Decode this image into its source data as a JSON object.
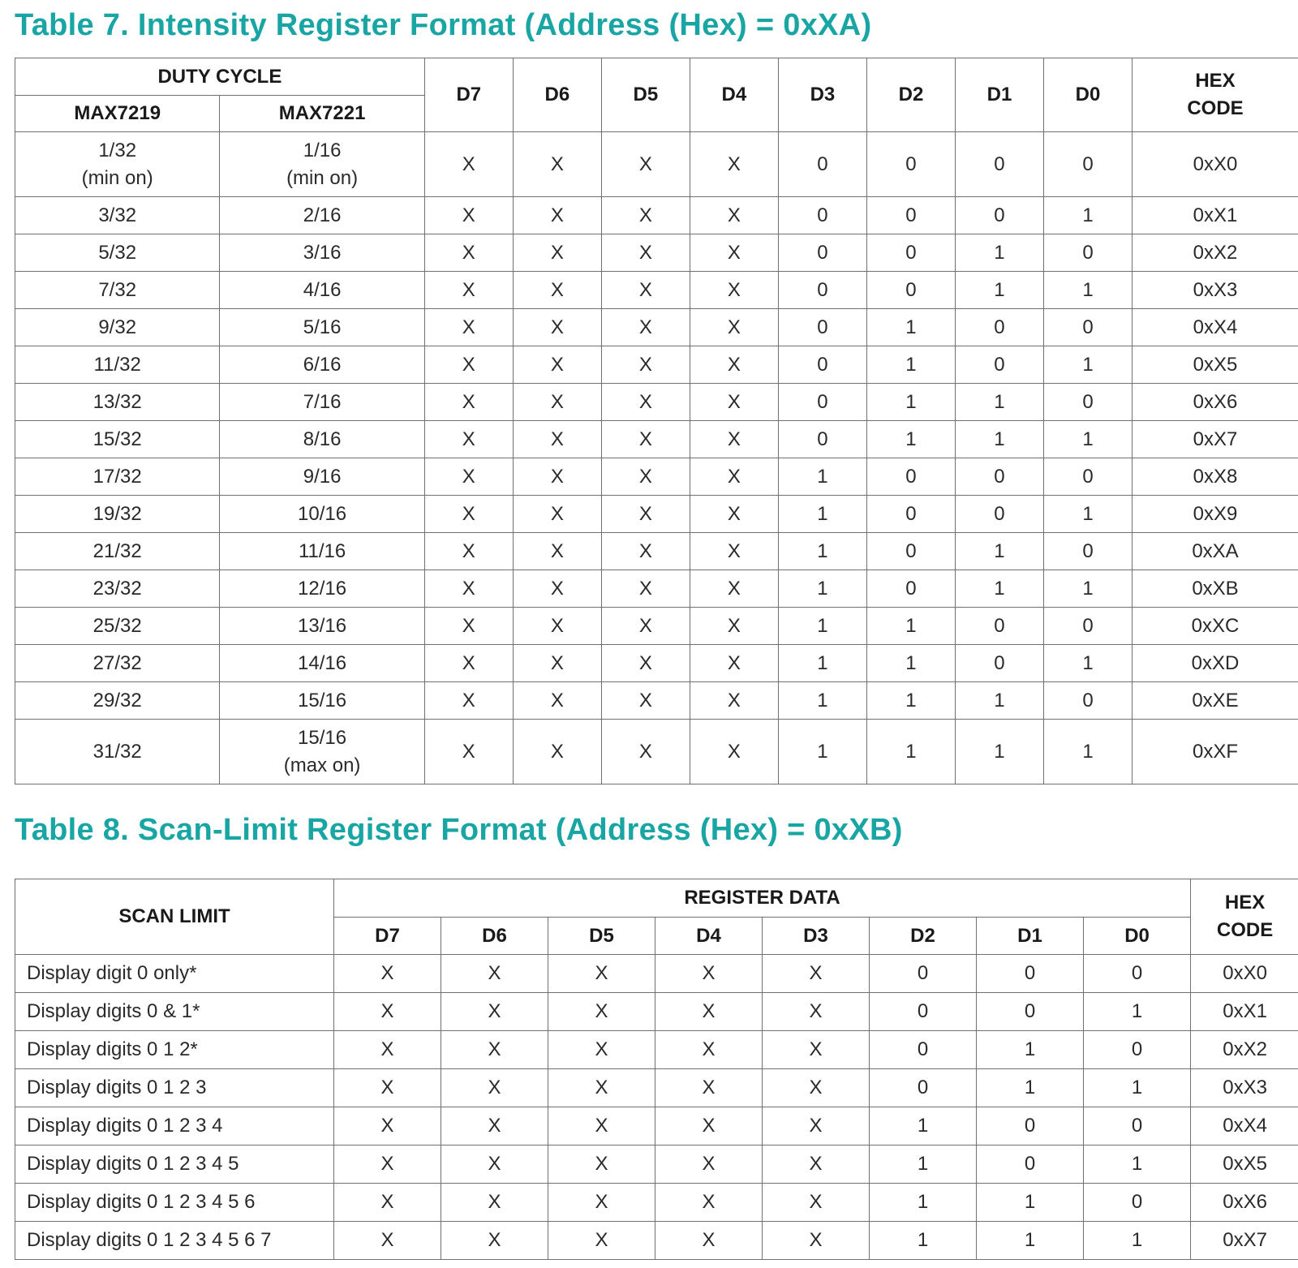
{
  "table7": {
    "title": "Table 7. Intensity Register Format (Address (Hex) = 0xXA)",
    "headers": {
      "duty_cycle": "DUTY CYCLE",
      "max7219": "MAX7219",
      "max7221": "MAX7221",
      "bits": [
        "D7",
        "D6",
        "D5",
        "D4",
        "D3",
        "D2",
        "D1",
        "D0"
      ],
      "hex_line1": "HEX",
      "hex_line2": "CODE"
    },
    "rows": [
      {
        "max7219": "1/32",
        "max7219_note": "(min on)",
        "max7221": "1/16",
        "max7221_note": "(min on)",
        "bits": [
          "X",
          "X",
          "X",
          "X",
          "0",
          "0",
          "0",
          "0"
        ],
        "hex": "0xX0"
      },
      {
        "max7219": "3/32",
        "max7221": "2/16",
        "bits": [
          "X",
          "X",
          "X",
          "X",
          "0",
          "0",
          "0",
          "1"
        ],
        "hex": "0xX1"
      },
      {
        "max7219": "5/32",
        "max7221": "3/16",
        "bits": [
          "X",
          "X",
          "X",
          "X",
          "0",
          "0",
          "1",
          "0"
        ],
        "hex": "0xX2"
      },
      {
        "max7219": "7/32",
        "max7221": "4/16",
        "bits": [
          "X",
          "X",
          "X",
          "X",
          "0",
          "0",
          "1",
          "1"
        ],
        "hex": "0xX3"
      },
      {
        "max7219": "9/32",
        "max7221": "5/16",
        "bits": [
          "X",
          "X",
          "X",
          "X",
          "0",
          "1",
          "0",
          "0"
        ],
        "hex": "0xX4"
      },
      {
        "max7219": "11/32",
        "max7221": "6/16",
        "bits": [
          "X",
          "X",
          "X",
          "X",
          "0",
          "1",
          "0",
          "1"
        ],
        "hex": "0xX5"
      },
      {
        "max7219": "13/32",
        "max7221": "7/16",
        "bits": [
          "X",
          "X",
          "X",
          "X",
          "0",
          "1",
          "1",
          "0"
        ],
        "hex": "0xX6"
      },
      {
        "max7219": "15/32",
        "max7221": "8/16",
        "bits": [
          "X",
          "X",
          "X",
          "X",
          "0",
          "1",
          "1",
          "1"
        ],
        "hex": "0xX7"
      },
      {
        "max7219": "17/32",
        "max7221": "9/16",
        "bits": [
          "X",
          "X",
          "X",
          "X",
          "1",
          "0",
          "0",
          "0"
        ],
        "hex": "0xX8"
      },
      {
        "max7219": "19/32",
        "max7221": "10/16",
        "bits": [
          "X",
          "X",
          "X",
          "X",
          "1",
          "0",
          "0",
          "1"
        ],
        "hex": "0xX9"
      },
      {
        "max7219": "21/32",
        "max7221": "11/16",
        "bits": [
          "X",
          "X",
          "X",
          "X",
          "1",
          "0",
          "1",
          "0"
        ],
        "hex": "0xXA"
      },
      {
        "max7219": "23/32",
        "max7221": "12/16",
        "bits": [
          "X",
          "X",
          "X",
          "X",
          "1",
          "0",
          "1",
          "1"
        ],
        "hex": "0xXB"
      },
      {
        "max7219": "25/32",
        "max7221": "13/16",
        "bits": [
          "X",
          "X",
          "X",
          "X",
          "1",
          "1",
          "0",
          "0"
        ],
        "hex": "0xXC"
      },
      {
        "max7219": "27/32",
        "max7221": "14/16",
        "bits": [
          "X",
          "X",
          "X",
          "X",
          "1",
          "1",
          "0",
          "1"
        ],
        "hex": "0xXD"
      },
      {
        "max7219": "29/32",
        "max7221": "15/16",
        "bits": [
          "X",
          "X",
          "X",
          "X",
          "1",
          "1",
          "1",
          "0"
        ],
        "hex": "0xXE"
      },
      {
        "max7219": "31/32",
        "max7221": "15/16",
        "max7221_note": "(max on)",
        "bits": [
          "X",
          "X",
          "X",
          "X",
          "1",
          "1",
          "1",
          "1"
        ],
        "hex": "0xXF"
      }
    ]
  },
  "table8": {
    "title": "Table 8. Scan-Limit Register Format (Address (Hex) = 0xXB)",
    "headers": {
      "scan_limit": "SCAN LIMIT",
      "register_data": "REGISTER DATA",
      "bits": [
        "D7",
        "D6",
        "D5",
        "D4",
        "D3",
        "D2",
        "D1",
        "D0"
      ],
      "hex_line1": "HEX",
      "hex_line2": "CODE"
    },
    "rows": [
      {
        "label": "Display digit 0 only*",
        "bits": [
          "X",
          "X",
          "X",
          "X",
          "X",
          "0",
          "0",
          "0"
        ],
        "hex": "0xX0"
      },
      {
        "label": "Display digits 0 & 1*",
        "bits": [
          "X",
          "X",
          "X",
          "X",
          "X",
          "0",
          "0",
          "1"
        ],
        "hex": "0xX1"
      },
      {
        "label": "Display digits 0 1 2*",
        "bits": [
          "X",
          "X",
          "X",
          "X",
          "X",
          "0",
          "1",
          "0"
        ],
        "hex": "0xX2"
      },
      {
        "label": "Display digits 0 1 2 3",
        "bits": [
          "X",
          "X",
          "X",
          "X",
          "X",
          "0",
          "1",
          "1"
        ],
        "hex": "0xX3"
      },
      {
        "label": "Display digits 0 1 2 3 4",
        "bits": [
          "X",
          "X",
          "X",
          "X",
          "X",
          "1",
          "0",
          "0"
        ],
        "hex": "0xX4"
      },
      {
        "label": "Display digits 0 1 2 3 4 5",
        "bits": [
          "X",
          "X",
          "X",
          "X",
          "X",
          "1",
          "0",
          "1"
        ],
        "hex": "0xX5"
      },
      {
        "label": "Display digits 0 1 2 3 4 5 6",
        "bits": [
          "X",
          "X",
          "X",
          "X",
          "X",
          "1",
          "1",
          "0"
        ],
        "hex": "0xX6"
      },
      {
        "label": "Display digits 0 1 2 3 4 5 6 7",
        "bits": [
          "X",
          "X",
          "X",
          "X",
          "X",
          "1",
          "1",
          "1"
        ],
        "hex": "0xX7"
      }
    ]
  }
}
